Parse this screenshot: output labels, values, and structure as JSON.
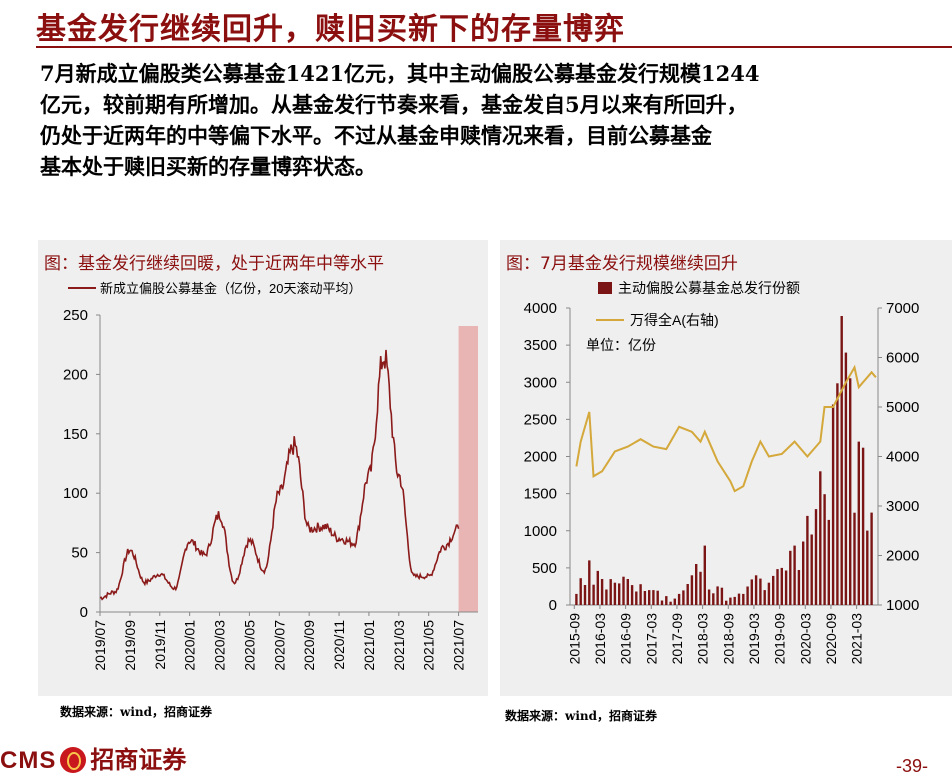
{
  "header": {
    "title": "基金发行继续回升，赎旧买新下的存量博弈"
  },
  "body": {
    "lines": [
      "7月新成立偏股类公募基金1421亿元，其中主动偏股公募基金发行规模1244",
      "亿元，较前期有所增加。从基金发行节奏来看，基金发自5月以来有所回升，",
      "仍处于近两年的中等偏下水平。不过从基金申赎情况来看，目前公募基金",
      "基本处于赎旧买新的存量博弈状态。"
    ]
  },
  "footer": {
    "brand": "CMS",
    "name": "招商证券",
    "page": "-39-"
  },
  "chart_data": [
    {
      "type": "line",
      "title": "图：基金发行继续回暖，处于近两年中等水平",
      "legend": "新成立偏股公募基金（亿份，20天滚动平均）",
      "source": "数据来源：wind，招商证券",
      "colors": {
        "line": "#8B1A1A",
        "highlight": "#E8B4B4"
      },
      "ylim": [
        0,
        250
      ],
      "yticks": [
        0,
        50,
        100,
        150,
        200,
        250
      ],
      "x_tick_labels": [
        "2019/07",
        "2019/09",
        "2019/11",
        "2020/01",
        "2020/03",
        "2020/05",
        "2020/07",
        "2020/09",
        "2020/11",
        "2021/01",
        "2021/03",
        "2021/05",
        "2021/07"
      ],
      "highlight_range": [
        "2021/07",
        "2021/08"
      ],
      "x": [
        "2019/07",
        "2019/08",
        "2019/09",
        "2019/10",
        "2019/11",
        "2019/12",
        "2020/01",
        "2020/02",
        "2020/03",
        "2020/04",
        "2020/05",
        "2020/06",
        "2020/07",
        "2020/08",
        "2020/09",
        "2020/10",
        "2020/11",
        "2020/12",
        "2021/01",
        "2021/02",
        "2021/03",
        "2021/04",
        "2021/05",
        "2021/06",
        "2021/07"
      ],
      "values": [
        12,
        17,
        52,
        25,
        32,
        20,
        60,
        48,
        82,
        25,
        60,
        35,
        100,
        140,
        70,
        72,
        62,
        58,
        115,
        215,
        115,
        30,
        30,
        55,
        70
      ]
    },
    {
      "type": "bar+line",
      "title": "图：7月基金发行规模继续回升",
      "unit_label": "单位：亿份",
      "source": "数据来源：wind，招商证券",
      "colors": {
        "bar": "#7B1414",
        "line": "#D4A83A"
      },
      "ylim_left": [
        0,
        4000
      ],
      "yticks_left": [
        0,
        500,
        1000,
        1500,
        2000,
        2500,
        3000,
        3500,
        4000
      ],
      "ylim_right": [
        1000,
        7000
      ],
      "yticks_right": [
        1000,
        2000,
        3000,
        4000,
        5000,
        6000,
        7000
      ],
      "x_tick_labels": [
        "2015-09",
        "2016-03",
        "2016-09",
        "2017-03",
        "2017-09",
        "2018-03",
        "2018-09",
        "2019-03",
        "2019-09",
        "2020-03",
        "2020-09",
        "2021-03"
      ],
      "series": [
        {
          "name": "主动偏股公募基金总发行份额",
          "axis": "left",
          "x": [
            "2015-09",
            "2015-12",
            "2016-03",
            "2016-06",
            "2016-09",
            "2016-12",
            "2017-03",
            "2017-06",
            "2017-09",
            "2017-12",
            "2018-03",
            "2018-06",
            "2018-09",
            "2018-12",
            "2019-03",
            "2019-06",
            "2019-09",
            "2019-12",
            "2020-03",
            "2020-06",
            "2020-09",
            "2020-12",
            "2021-03",
            "2021-06"
          ],
          "values": [
            150,
            600,
            350,
            300,
            350,
            280,
            200,
            120,
            150,
            400,
            800,
            250,
            100,
            150,
            400,
            300,
            500,
            800,
            1200,
            1800,
            2700,
            3400,
            2200,
            1244
          ]
        },
        {
          "name": "万得全A(右轴)",
          "axis": "right",
          "x": [
            "2015-09",
            "2015-10",
            "2015-12",
            "2016-01",
            "2016-03",
            "2016-06",
            "2016-09",
            "2016-12",
            "2017-03",
            "2017-06",
            "2017-09",
            "2017-12",
            "2018-02",
            "2018-03",
            "2018-06",
            "2018-09",
            "2018-10",
            "2018-12",
            "2019-02",
            "2019-04",
            "2019-06",
            "2019-09",
            "2019-12",
            "2020-03",
            "2020-06",
            "2020-07",
            "2020-09",
            "2020-12",
            "2021-02",
            "2021-03",
            "2021-06",
            "2021-07"
          ],
          "values": [
            3800,
            4300,
            4900,
            3600,
            3700,
            4100,
            4200,
            4350,
            4200,
            4150,
            4600,
            4500,
            4300,
            4500,
            3900,
            3500,
            3300,
            3400,
            3900,
            4300,
            4000,
            4050,
            4300,
            4000,
            4300,
            5000,
            5000,
            5500,
            5800,
            5400,
            5700,
            5600
          ]
        }
      ]
    }
  ]
}
